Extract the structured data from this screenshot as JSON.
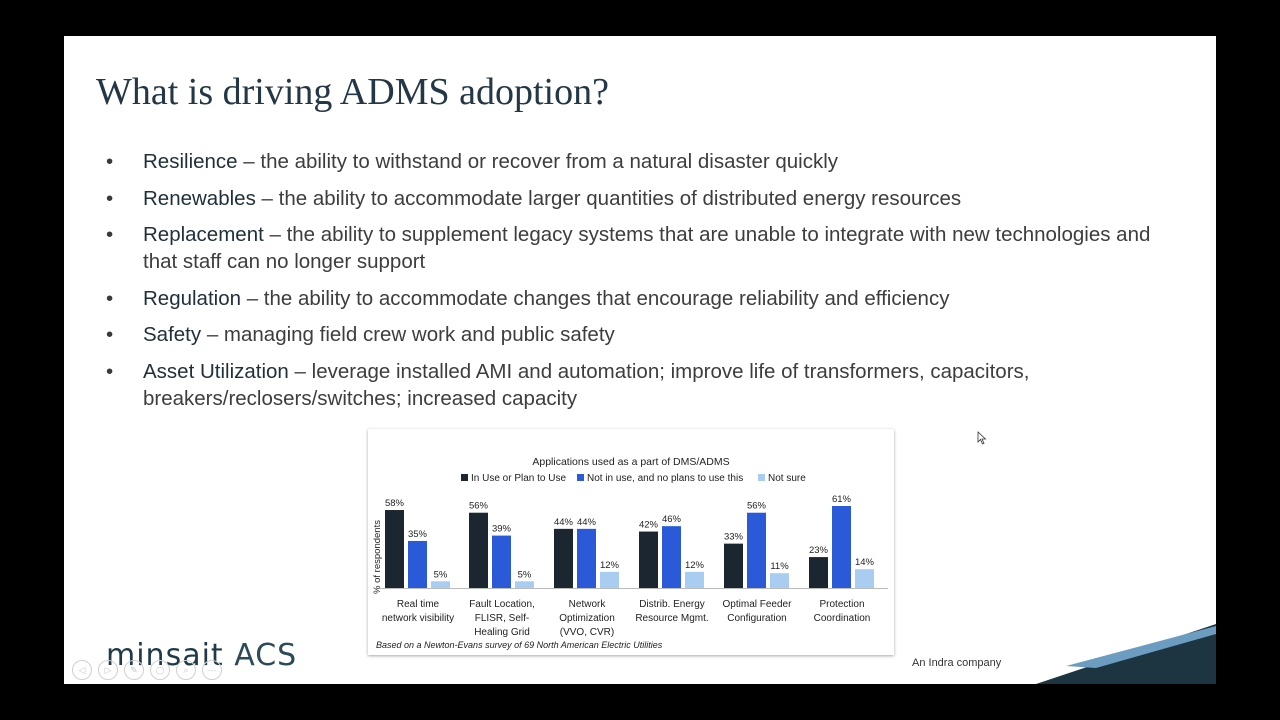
{
  "slide": {
    "title": "What is driving ADMS adoption?",
    "bullets": [
      {
        "term": "Resilience",
        "text": " – the ability to withstand or recover from a natural disaster quickly"
      },
      {
        "term": "Renewables",
        "text": " – the ability to accommodate larger quantities of distributed energy resources"
      },
      {
        "term": "Replacement",
        "text": " – the ability to supplement legacy systems that are unable to integrate with new technologies and that staff can no longer support"
      },
      {
        "term": "Regulation",
        "text": " – the ability to accommodate changes that encourage reliability and efficiency"
      },
      {
        "term": "Safety",
        "text": " – managing field crew work and public safety"
      },
      {
        "term": "Asset Utilization",
        "text": " – leverage installed AMI and automation; improve life of transformers, capacitors, breakers/reclosers/switches; increased capacity"
      }
    ],
    "logo": {
      "brand": "minsait",
      "product": "ACS"
    },
    "tagline": "An Indra company",
    "bullet_symbol": "•",
    "controls": [
      "◁",
      "▷",
      "✎",
      "▢",
      "⌕",
      "⋯"
    ]
  },
  "chart_data": {
    "type": "bar",
    "title": "Applications used as a part of DMS/ADMS",
    "ylabel": "% of respondents",
    "footnote": "Based on a Newton-Evans survey of 69 North American Electric Utilities",
    "ylim": [
      0,
      70
    ],
    "categories": [
      [
        "Real time",
        "network visibility"
      ],
      [
        "Fault Location,",
        "FLISR, Self-",
        "Healing Grid"
      ],
      [
        "Network",
        "Optimization",
        "(VVO, CVR)"
      ],
      [
        "Distrib. Energy",
        "Resource Mgmt."
      ],
      [
        "Optimal Feeder",
        "Configuration"
      ],
      [
        "Protection",
        "Coordination"
      ]
    ],
    "series": [
      {
        "name": "In Use or Plan to Use",
        "color": "#1c2630",
        "values": [
          58,
          56,
          44,
          42,
          33,
          23
        ]
      },
      {
        "name": "Not in use, and no plans to use this",
        "color": "#2a5ad8",
        "values": [
          35,
          39,
          44,
          46,
          56,
          61
        ]
      },
      {
        "name": "Not sure",
        "color": "#a9cdf0",
        "values": [
          5,
          5,
          12,
          12,
          11,
          14
        ]
      }
    ],
    "legend_position": "top",
    "grid": false
  }
}
